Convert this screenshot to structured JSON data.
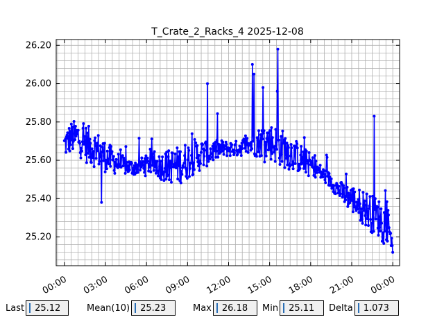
{
  "chart_data": {
    "type": "line",
    "title": "T_Crate_2_Racks_4 2025-12-08",
    "xlabel": "",
    "ylabel": "",
    "x_ticks": [
      "00:00",
      "03:00",
      "06:00",
      "09:00",
      "12:00",
      "15:00",
      "18:00",
      "21:00",
      "00:00"
    ],
    "y_ticks": [
      "25.20",
      "25.40",
      "25.60",
      "25.80",
      "26.00",
      "26.20"
    ],
    "xlim_hours": [
      -0.6,
      24.5
    ],
    "ylim": [
      25.05,
      26.23
    ],
    "grid": true,
    "series": [
      {
        "color": "#0000ff",
        "trend_hours": [
          0.0,
          0.5,
          1.0,
          1.5,
          2.0,
          2.5,
          3.0,
          3.5,
          4.0,
          4.5,
          5.0,
          5.5,
          6.0,
          6.5,
          7.0,
          7.5,
          8.0,
          8.5,
          9.0,
          9.5,
          10.0,
          10.5,
          11.0,
          11.5,
          12.0,
          12.5,
          13.0,
          13.5,
          14.0,
          14.5,
          15.0,
          15.5,
          16.0,
          16.5,
          17.0,
          17.5,
          18.0,
          18.5,
          19.0,
          19.5,
          20.0,
          20.5,
          21.0,
          21.5,
          22.0,
          22.5,
          23.0,
          23.5,
          24.0
        ],
        "trend_values": [
          25.68,
          25.72,
          25.72,
          25.69,
          25.67,
          25.65,
          25.62,
          25.6,
          25.58,
          25.57,
          25.56,
          25.57,
          25.58,
          25.58,
          25.57,
          25.57,
          25.57,
          25.58,
          25.6,
          25.62,
          25.63,
          25.64,
          25.65,
          25.66,
          25.66,
          25.66,
          25.67,
          25.68,
          25.69,
          25.7,
          25.7,
          25.68,
          25.66,
          25.64,
          25.62,
          25.6,
          25.58,
          25.55,
          25.52,
          25.49,
          25.45,
          25.42,
          25.4,
          25.37,
          25.35,
          25.32,
          25.3,
          25.28,
          25.2
        ],
        "peaks": [
          {
            "hour": 10.45,
            "value": 26.0
          },
          {
            "hour": 13.75,
            "value": 26.1
          },
          {
            "hour": 13.85,
            "value": 26.05
          },
          {
            "hour": 14.5,
            "value": 25.98
          },
          {
            "hour": 15.6,
            "value": 26.18
          },
          {
            "hour": 15.55,
            "value": 25.96
          },
          {
            "hour": 2.7,
            "value": 25.38
          },
          {
            "hour": 22.65,
            "value": 25.83
          },
          {
            "hour": 24.0,
            "value": 25.11
          }
        ],
        "last_value": 25.12
      }
    ]
  },
  "stats": {
    "last_label": "Last",
    "last_value": "25.12",
    "mean_label": "Mean(10)",
    "mean_value": "25.23",
    "max_label": "Max",
    "max_value": "26.18",
    "min_label": "Min",
    "min_value": "25.11",
    "delta_label": "Delta",
    "delta_value": "1.073"
  }
}
